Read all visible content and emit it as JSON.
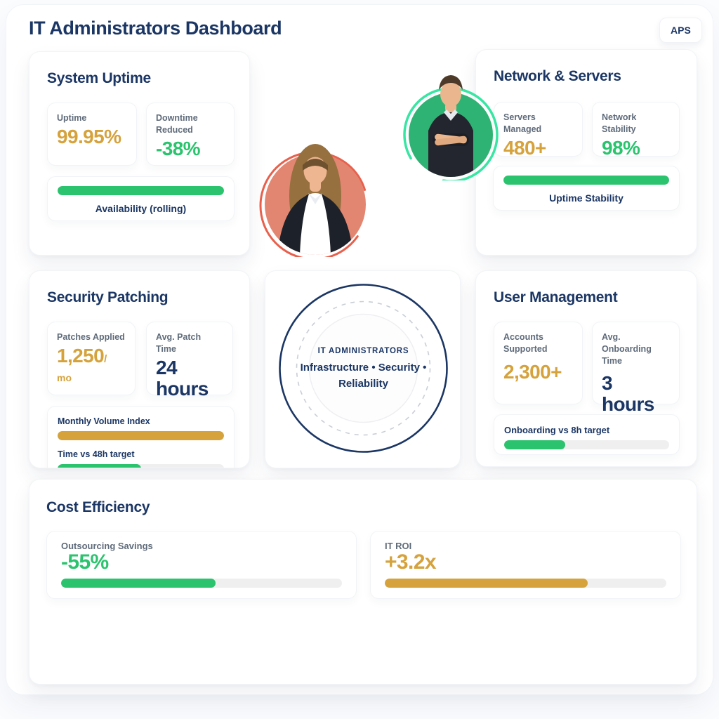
{
  "header": {
    "title": "IT Administrators Dashboard",
    "badge": "APS"
  },
  "cards": {
    "system_uptime": {
      "title": "System Uptime",
      "stats": [
        {
          "label": "Uptime",
          "value": "99.95%"
        },
        {
          "label": "Downtime Reduced",
          "value": "-38%"
        }
      ],
      "progress": {
        "label": "Availability (rolling)",
        "percent": 100
      }
    },
    "network_servers": {
      "title": "Network & Servers",
      "stats": [
        {
          "label": "Servers Managed",
          "value": "480+"
        },
        {
          "label": "Network Stability",
          "value": "98%"
        }
      ],
      "progress": {
        "label": "Uptime Stability",
        "percent": 100
      }
    },
    "security_patching": {
      "title": "Security Patching",
      "stats": [
        {
          "label": "Patches Applied",
          "value": "1,250",
          "slash": "/",
          "unit": "mo"
        },
        {
          "label": "Avg. Patch Time",
          "value_top": "24",
          "value_bottom": "hours"
        }
      ],
      "bars": [
        {
          "label": "Monthly Volume Index",
          "percent": 100
        },
        {
          "label": "Time vs 48h target",
          "percent": 50
        }
      ]
    },
    "emblem": {
      "title": "IT ADMINISTRATORS",
      "subtitle": "Infrastructure • Security • Reliability"
    },
    "user_management": {
      "title": "User Management",
      "stats": [
        {
          "label": "Accounts Supported",
          "value": "2,300+"
        },
        {
          "label": "Avg. Onboarding Time",
          "value_top": "3",
          "value_bottom": "hours"
        }
      ],
      "progress": {
        "label": "Onboarding vs 8h target",
        "percent": 37
      }
    },
    "cost_efficiency": {
      "title": "Cost Efficiency",
      "metrics": [
        {
          "label": "Outsourcing Savings",
          "value": "-55%",
          "percent": 55
        },
        {
          "label": "IT ROI",
          "value": "+3.2x",
          "percent": 72
        }
      ]
    }
  },
  "colors": {
    "navy": "#1b3664",
    "gold": "#d5a23c",
    "green": "#2bc36e",
    "mint_ring": "#38e5a2",
    "coral_ring": "#e8604c",
    "salmon_bg": "#e28672",
    "green_bg": "#2fb374",
    "label_gray": "#5f6b7a",
    "track": "#efefef"
  }
}
